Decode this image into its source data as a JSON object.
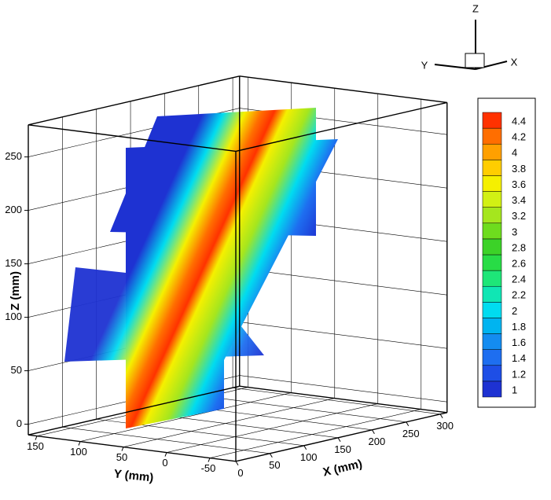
{
  "chart_data": {
    "type": "contour3d",
    "xlabel": "X (mm)",
    "ylabel": "Y (mm)",
    "zlabel": "Z (mm)",
    "xlim": [
      0,
      310
    ],
    "xticks": [
      0,
      50,
      100,
      150,
      200,
      250,
      300
    ],
    "ylim": [
      -80,
      160
    ],
    "yticks": [
      150,
      100,
      50,
      0,
      -50
    ],
    "zlim": [
      -10,
      280
    ],
    "zticks": [
      0,
      50,
      100,
      150,
      200,
      250
    ],
    "grid": true,
    "orientation_axes": {
      "x": "X",
      "y": "Y",
      "z": "Z"
    },
    "legend": {
      "position": "right",
      "levels": [
        1,
        1.2,
        1.4,
        1.6,
        1.8,
        2,
        2.2,
        2.4,
        2.6,
        2.8,
        3,
        3.2,
        3.4,
        3.6,
        3.8,
        4,
        4.2,
        4.4
      ],
      "colors": [
        "#1e32d2",
        "#1e4ee6",
        "#1e6ef0",
        "#148cf0",
        "#00b4f0",
        "#00dcf0",
        "#10e6b4",
        "#1ee678",
        "#28dc46",
        "#3cd228",
        "#6edc1e",
        "#a5e61e",
        "#d2f014",
        "#f5f000",
        "#ffcd00",
        "#ffa000",
        "#ff6e00",
        "#ff3200"
      ]
    }
  }
}
